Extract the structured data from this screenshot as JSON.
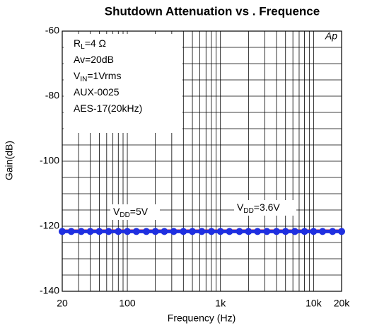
{
  "chart_data": {
    "type": "line",
    "title": "Shutdown Attenuation vs . Frequence",
    "xlabel": "Frequency (Hz)",
    "ylabel": "Gain(dB)",
    "logo": "Ap",
    "xscale": "log",
    "xlim": [
      20,
      20000
    ],
    "ylim": [
      -140,
      -60
    ],
    "xticks": [
      20,
      100,
      {
        "value": 1000,
        "label": "1k"
      },
      {
        "value": 10000,
        "label": "10k"
      },
      {
        "value": 20000,
        "label": "20k"
      }
    ],
    "yticks": [
      -140,
      -120,
      -100,
      -80,
      -60
    ],
    "xgrid": [
      30,
      40,
      50,
      60,
      70,
      80,
      90,
      200,
      300,
      400,
      500,
      600,
      700,
      800,
      900,
      2000,
      3000,
      4000,
      5000,
      6000,
      7000,
      8000,
      9000
    ],
    "ygrid": [
      -135,
      -130,
      -125,
      -115,
      -110,
      -105,
      -95,
      -90,
      -85,
      -75,
      -70,
      -65
    ],
    "grid": true,
    "notes": [
      [
        {
          "t": "R"
        },
        {
          "t": "L",
          "sub": true
        },
        {
          "t": "=4 Ω"
        }
      ],
      [
        {
          "t": "Av=20dB"
        }
      ],
      [
        {
          "t": "V"
        },
        {
          "t": "IN",
          "sub": true
        },
        {
          "t": "=1Vrms"
        }
      ],
      [
        {
          "t": "AUX-0025"
        }
      ],
      [
        {
          "t": "AES-17(20kHz)"
        }
      ]
    ],
    "x": [
      20,
      25,
      32,
      40,
      50,
      63,
      80,
      100,
      125,
      160,
      200,
      250,
      315,
      400,
      500,
      630,
      800,
      1000,
      1250,
      1600,
      2000,
      2500,
      3150,
      4000,
      5000,
      6300,
      8000,
      10000,
      12500,
      16000,
      20000
    ],
    "series": [
      {
        "name_parts": [
          {
            "t": "V"
          },
          {
            "t": "DD",
            "sub": true
          },
          {
            "t": "=5V"
          }
        ],
        "color": "#e8191b",
        "marker": false,
        "values": [
          -121.3,
          -121.3,
          -121.3,
          -121.3,
          -121.3,
          -121.3,
          -121.3,
          -121.3,
          -121.3,
          -121.3,
          -121.3,
          -121.3,
          -121.3,
          -121.3,
          -121.3,
          -121.3,
          -121.3,
          -121.3,
          -121.3,
          -121.3,
          -121.3,
          -121.3,
          -121.3,
          -121.3,
          -121.3,
          -121.3,
          -121.3,
          -121.3,
          -121.3,
          -121.3,
          -121.3
        ]
      },
      {
        "name_parts": [
          {
            "t": "V"
          },
          {
            "t": "DD",
            "sub": true
          },
          {
            "t": "=3.6V"
          }
        ],
        "color": "#1f2fe0",
        "marker": true,
        "values": [
          -121.6,
          -121.6,
          -121.6,
          -121.6,
          -121.6,
          -121.6,
          -121.6,
          -121.6,
          -121.6,
          -121.6,
          -121.6,
          -121.6,
          -121.6,
          -121.6,
          -121.6,
          -121.6,
          -121.6,
          -121.6,
          -121.6,
          -121.6,
          -121.6,
          -121.6,
          -121.6,
          -121.6,
          -121.6,
          -121.6,
          -121.6,
          -121.6,
          -121.6,
          -121.6,
          -121.6
        ]
      }
    ]
  }
}
